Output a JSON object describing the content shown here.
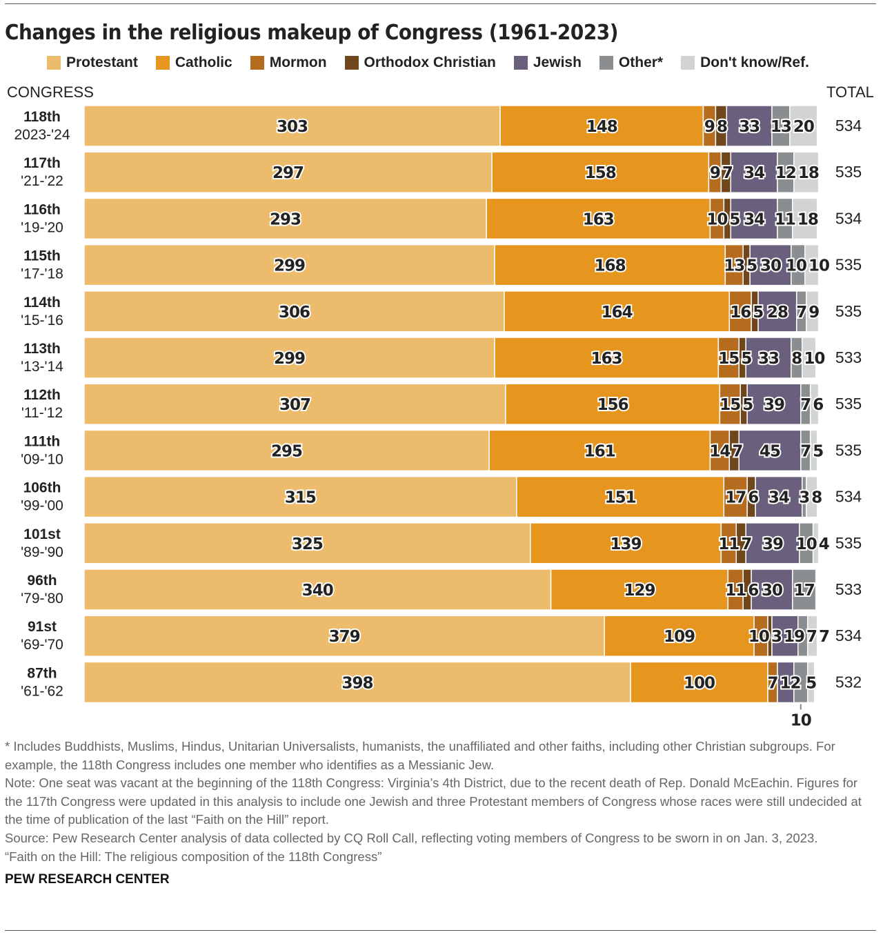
{
  "title": "Changes in the religious makeup of Congress (1961-2023)",
  "chart_data": {
    "type": "bar",
    "orientation": "horizontal-stacked",
    "title": "Changes in the religious makeup of Congress (1961-2023)",
    "row_header": "CONGRESS",
    "total_header": "TOTAL",
    "series": [
      {
        "name": "Protestant",
        "color": "#EDBB6C",
        "values": [
          303,
          297,
          293,
          299,
          306,
          299,
          307,
          295,
          315,
          325,
          340,
          379,
          398
        ]
      },
      {
        "name": "Catholic",
        "color": "#E6961E",
        "values": [
          148,
          158,
          163,
          168,
          164,
          163,
          156,
          161,
          151,
          139,
          129,
          109,
          100
        ]
      },
      {
        "name": "Mormon",
        "color": "#B56C1E",
        "values": [
          9,
          9,
          10,
          13,
          16,
          15,
          15,
          14,
          17,
          11,
          11,
          10,
          7
        ]
      },
      {
        "name": "Orthodox Christian",
        "color": "#70461C",
        "values": [
          8,
          7,
          5,
          5,
          5,
          5,
          5,
          7,
          6,
          7,
          6,
          3,
          0
        ]
      },
      {
        "name": "Jewish",
        "color": "#6A5F7C",
        "values": [
          33,
          34,
          34,
          30,
          28,
          33,
          39,
          45,
          34,
          39,
          30,
          19,
          12
        ]
      },
      {
        "name": "Other*",
        "color": "#8B8E90",
        "values": [
          13,
          12,
          11,
          10,
          7,
          8,
          7,
          7,
          3,
          10,
          17,
          7,
          10
        ]
      },
      {
        "name": "Don't know/Ref.",
        "color": "#D2D3D3",
        "values": [
          20,
          18,
          18,
          10,
          9,
          10,
          6,
          5,
          8,
          4,
          0,
          7,
          5
        ]
      }
    ],
    "categories": [
      {
        "congress": "118th",
        "years": "2023-'24",
        "total": "534"
      },
      {
        "congress": "117th",
        "years": "'21-'22",
        "total": "535"
      },
      {
        "congress": "116th",
        "years": "'19-'20",
        "total": "534"
      },
      {
        "congress": "115th",
        "years": "'17-'18",
        "total": "535"
      },
      {
        "congress": "114th",
        "years": "'15-'16",
        "total": "535"
      },
      {
        "congress": "113th",
        "years": "'13-'14",
        "total": "533"
      },
      {
        "congress": "112th",
        "years": "'11-'12",
        "total": "535"
      },
      {
        "congress": "111th",
        "years": "'09-'10",
        "total": "535"
      },
      {
        "congress": "106th",
        "years": "'99-'00",
        "total": "534"
      },
      {
        "congress": "101st",
        "years": "'89-'90",
        "total": "535"
      },
      {
        "congress": "96th",
        "years": "'79-'80",
        "total": "533"
      },
      {
        "congress": "91st",
        "years": "'69-'70",
        "total": "534"
      },
      {
        "congress": "87th",
        "years": "'61-'62",
        "total": "532"
      }
    ],
    "callout": {
      "row": "87th",
      "series": "Other*",
      "label": "10"
    }
  },
  "notes": [
    "* Includes Buddhists, Muslims, Hindus, Unitarian Universalists, humanists, the unaffiliated and other faiths, including other Christian subgroups. For example, the 118th Congress includes one member who identifies as a Messianic Jew.",
    "Note: One seat was vacant at the beginning of the 118th Congress: Virginia’s 4th District, due to the recent death of Rep. Donald McEachin. Figures for the 117th Congress were updated in this analysis to include one Jewish and three Protestant members of Congress whose races were still undecided at the time of publication of the last “Faith on the Hill” report.",
    "Source: Pew Research Center analysis of data collected by CQ Roll Call, reflecting voting members of Congress to be sworn in on Jan. 3, 2023.",
    "“Faith on the Hill: The religious composition of the 118th Congress”"
  ],
  "brand": "PEW RESEARCH CENTER"
}
